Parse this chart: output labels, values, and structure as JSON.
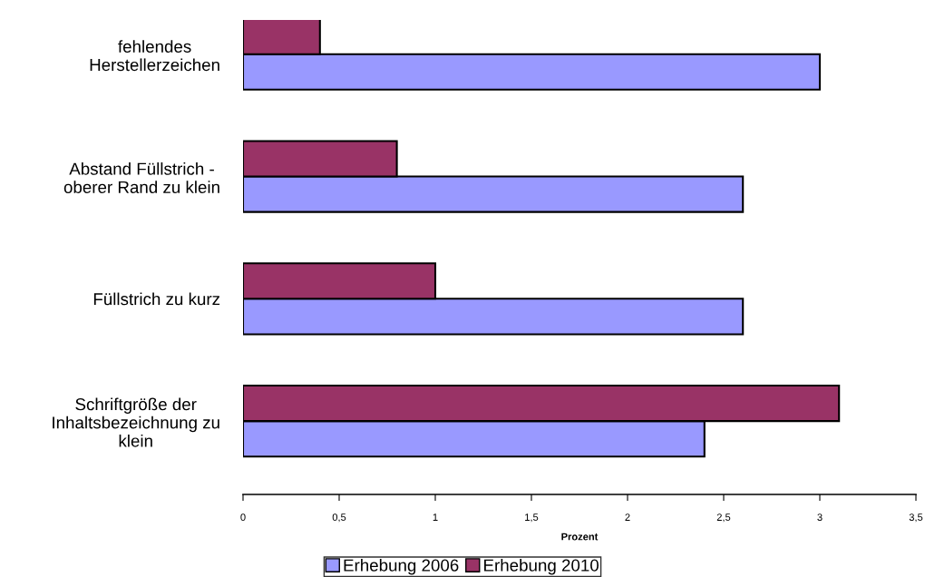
{
  "chart_data": {
    "type": "bar",
    "orientation": "horizontal",
    "categories": [
      "fehlendes\nHerstellerzeichen",
      "Abstand Füllstrich -\noberer Rand zu klein",
      "Füllstrich zu kurz",
      "Schriftgröße der\nInhaltsbezeichnung zu\nklein"
    ],
    "series": [
      {
        "name": "Erhebung 2006",
        "color": "#9999ff",
        "values": [
          3.0,
          2.6,
          2.6,
          2.4
        ]
      },
      {
        "name": "Erhebung 2010",
        "color": "#993366",
        "values": [
          0.4,
          0.8,
          1.0,
          3.1
        ]
      }
    ],
    "xlabel": "Prozent",
    "xlim": [
      0,
      3.5
    ],
    "xticks": [
      0,
      {
        "value": 0.5,
        "label": "0,5"
      },
      1,
      {
        "value": 1.5,
        "label": "1,5"
      },
      2,
      {
        "value": 2.5,
        "label": "2,5"
      },
      3,
      {
        "value": 3.5,
        "label": "3,5"
      }
    ],
    "grid": false,
    "legend": "bottom"
  }
}
